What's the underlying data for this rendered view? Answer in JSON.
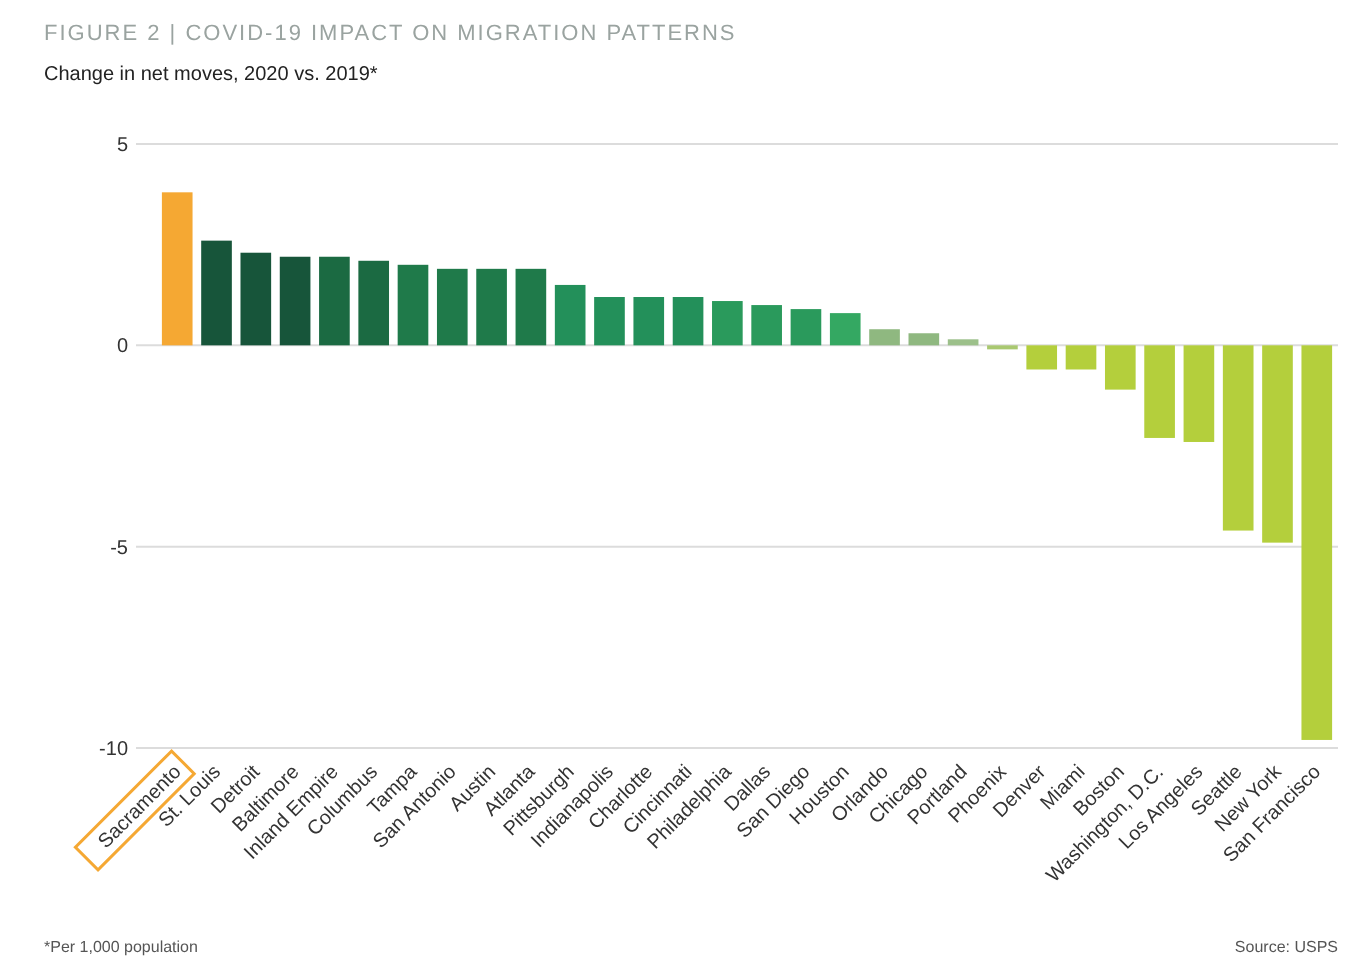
{
  "chart_data": {
    "type": "bar",
    "title": "FIGURE 2 | COVID-19 IMPACT ON MIGRATION PATTERNS",
    "subtitle": "Change in net moves, 2020 vs. 2019*",
    "categories": [
      "Sacramento",
      "St. Louis",
      "Detroit",
      "Baltimore",
      "Inland Empire",
      "Columbus",
      "Tampa",
      "San Antonio",
      "Austin",
      "Atlanta",
      "Pittsburgh",
      "Indianapolis",
      "Charlotte",
      "Cincinnati",
      "Philadelphia",
      "Dallas",
      "San Diego",
      "Houston",
      "Orlando",
      "Chicago",
      "Portland",
      "Phoenix",
      "Denver",
      "Miami",
      "Boston",
      "Washington, D.C.",
      "Los Angeles",
      "Seattle",
      "New York",
      "San Francisco"
    ],
    "values": [
      3.8,
      2.6,
      2.3,
      2.2,
      2.2,
      2.1,
      2.0,
      1.9,
      1.9,
      1.9,
      1.5,
      1.2,
      1.2,
      1.2,
      1.1,
      1.0,
      0.9,
      0.8,
      0.4,
      0.3,
      0.15,
      -0.1,
      -0.6,
      -0.6,
      -1.1,
      -2.3,
      -2.4,
      -4.6,
      -4.9,
      -9.8
    ],
    "colors": [
      "#f5a833",
      "#17553a",
      "#17553a",
      "#17553a",
      "#1b6a42",
      "#1b6a42",
      "#1f7a4a",
      "#1f7a4a",
      "#1f7a4a",
      "#1f7a4a",
      "#23905a",
      "#23905a",
      "#23905a",
      "#23905a",
      "#2a9a5c",
      "#2a9a5c",
      "#2a9a5c",
      "#34a862",
      "#8fb880",
      "#8fb880",
      "#9cc08a",
      "#a9c870",
      "#b4cf3c",
      "#b4cf3c",
      "#b4cf3c",
      "#b4cf3c",
      "#b4cf3c",
      "#b4cf3c",
      "#b4cf3c",
      "#b4cf3c"
    ],
    "ylim": [
      -10,
      5
    ],
    "yticks": [
      5,
      0,
      -5,
      -10
    ],
    "grid": "y",
    "annotations": [
      "*Per 1,000 population",
      "Source: USPS"
    ]
  }
}
